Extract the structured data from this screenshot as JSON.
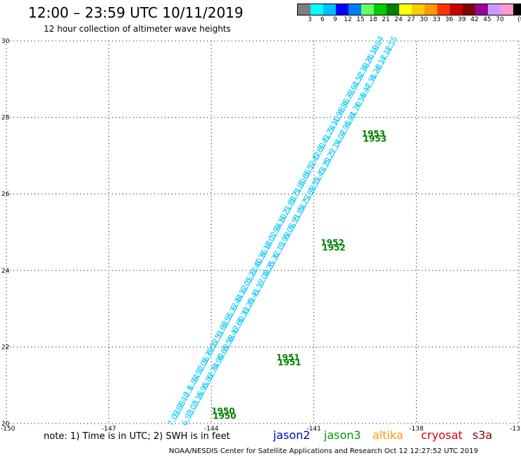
{
  "header": {
    "title": "12:00 – 23:59 UTC 10/11/2019",
    "subtitle": "12 hour collection of altimeter wave heights"
  },
  "colorbar": {
    "unit": "(ft)",
    "colors": [
      "#808080",
      "#00ffff",
      "#00bfff",
      "#0000ff",
      "#0080ff",
      "#66ff66",
      "#00cc00",
      "#008000",
      "#ffff00",
      "#ffcc00",
      "#ff9900",
      "#ff3300",
      "#cc0000",
      "#800000",
      "#990099",
      "#cc99ff",
      "#ff99cc",
      "#000000"
    ],
    "labels": [
      "3",
      "6",
      "9",
      "12",
      "15",
      "18",
      "21",
      "24",
      "27",
      "30",
      "33",
      "36",
      "39",
      "42",
      "45",
      "70"
    ]
  },
  "axes": {
    "x_ticks": [
      "-150",
      "-147",
      "-144",
      "-141",
      "-138",
      "-13"
    ],
    "y_ticks": [
      "30",
      "28",
      "26",
      "24",
      "22",
      "20"
    ]
  },
  "chart_data": {
    "type": "scatter",
    "xlim": [
      -150,
      -135
    ],
    "ylim": [
      20,
      30
    ],
    "grid": true,
    "tracks": [
      {
        "satellite": "jason3",
        "color": "#00c8ff",
        "start": [
          -145.1,
          20.0
        ],
        "end": [
          -139.0,
          30.0
        ],
        "values_ft": [
          "7.03",
          "6.88",
          "7.40",
          "7.1",
          "6.84",
          "6.92",
          "7.06",
          "6.79",
          "6.57",
          "6.51",
          "6.68",
          "6.55",
          "6.37",
          "6.44",
          "6.12",
          "6.05",
          "6.22",
          "6.40",
          "6.36",
          "6.18",
          "6.02",
          "5.94",
          "6.10",
          "6.21",
          "5.88",
          "5.71",
          "5.80",
          "5.66",
          "5.52",
          "5.47",
          "5.60",
          "5.41",
          "5.24",
          "5.10",
          "4.98",
          "4.86",
          "4.73",
          "4.61",
          "4.52",
          "4.39",
          "4.25",
          "4.19",
          "4.84"
        ]
      },
      {
        "satellite": "jason3",
        "color": "#00c8ff",
        "start": [
          -144.7,
          20.0
        ],
        "end": [
          -138.6,
          30.0
        ],
        "values_ft": [
          "6.93",
          "7.03",
          "7.16",
          "6.95",
          "6.82",
          "6.74",
          "6.90",
          "6.69",
          "6.58",
          "6.47",
          "6.60",
          "6.33",
          "6.29",
          "6.41",
          "6.17",
          "6.08",
          "6.25",
          "6.32",
          "6.13",
          "5.99",
          "6.06",
          "5.91",
          "5.84",
          "5.73",
          "5.68",
          "5.55",
          "5.43",
          "5.39",
          "5.27",
          "5.14",
          "5.02",
          "4.95",
          "4.81",
          "4.70",
          "4.59",
          "4.47",
          "4.35",
          "4.28",
          "4.17",
          "4.12",
          "4.55"
        ]
      }
    ],
    "time_labels": [
      {
        "text": "1950",
        "lon": -144.0,
        "lat": 20.25
      },
      {
        "text": "1951",
        "lon": -142.1,
        "lat": 21.65
      },
      {
        "text": "1952",
        "lon": -140.8,
        "lat": 24.65
      },
      {
        "text": "1953",
        "lon": -139.6,
        "lat": 27.5
      }
    ]
  },
  "footer": {
    "note": "note: 1) Time is in UTC;  2) SWH is in feet",
    "satellites": [
      {
        "name": "jason2",
        "color": "#0000cc"
      },
      {
        "name": "jason3",
        "color": "#009900"
      },
      {
        "name": "altika",
        "color": "#ff9900"
      },
      {
        "name": "cryosat",
        "color": "#dd0000"
      },
      {
        "name": "s3a",
        "color": "#880000"
      }
    ],
    "credit": "NOAA/NESDIS Center for Satellite Applications and Research     Oct 12 12:27:52 UTC 2019"
  }
}
